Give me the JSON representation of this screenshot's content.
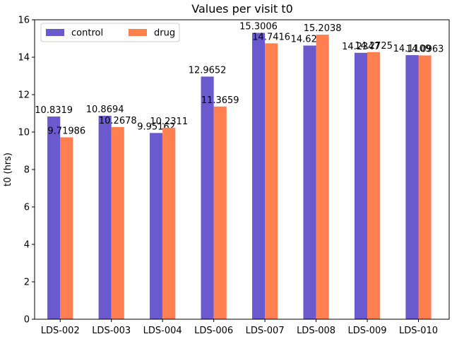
{
  "chart_data": {
    "type": "bar",
    "title": "Values per visit t0",
    "xlabel": "",
    "ylabel": "t0 (hrs)",
    "ylim": [
      0,
      16
    ],
    "yticks": [
      0,
      2,
      4,
      6,
      8,
      10,
      12,
      14,
      16
    ],
    "categories": [
      "LDS-002",
      "LDS-003",
      "LDS-004",
      "LDS-006",
      "LDS-007",
      "LDS-008",
      "LDS-009",
      "LDS-010"
    ],
    "series": [
      {
        "name": "control",
        "color": "#6a5acd",
        "values": [
          10.8319,
          10.8694,
          9.95162,
          12.9652,
          15.3006,
          14.6227,
          14.2347,
          14.1109
        ],
        "labels": [
          "10.8319",
          "10.8694",
          "9.95162",
          "12.9652",
          "15.3006",
          "14.6227",
          "14.2347",
          "14.1109"
        ]
      },
      {
        "name": "drug",
        "color": "#ff7f50",
        "values": [
          9.71986,
          10.2678,
          10.2311,
          11.3659,
          14.7416,
          15.2038,
          14.2725,
          14.0963
        ],
        "labels": [
          "9.71986",
          "10.2678",
          "10.2311",
          "11.3659",
          "14.7416",
          "15.2038",
          "14.2725",
          "14.0963"
        ]
      }
    ],
    "grid": false,
    "legend": "top-left",
    "legend_columns": 2
  }
}
